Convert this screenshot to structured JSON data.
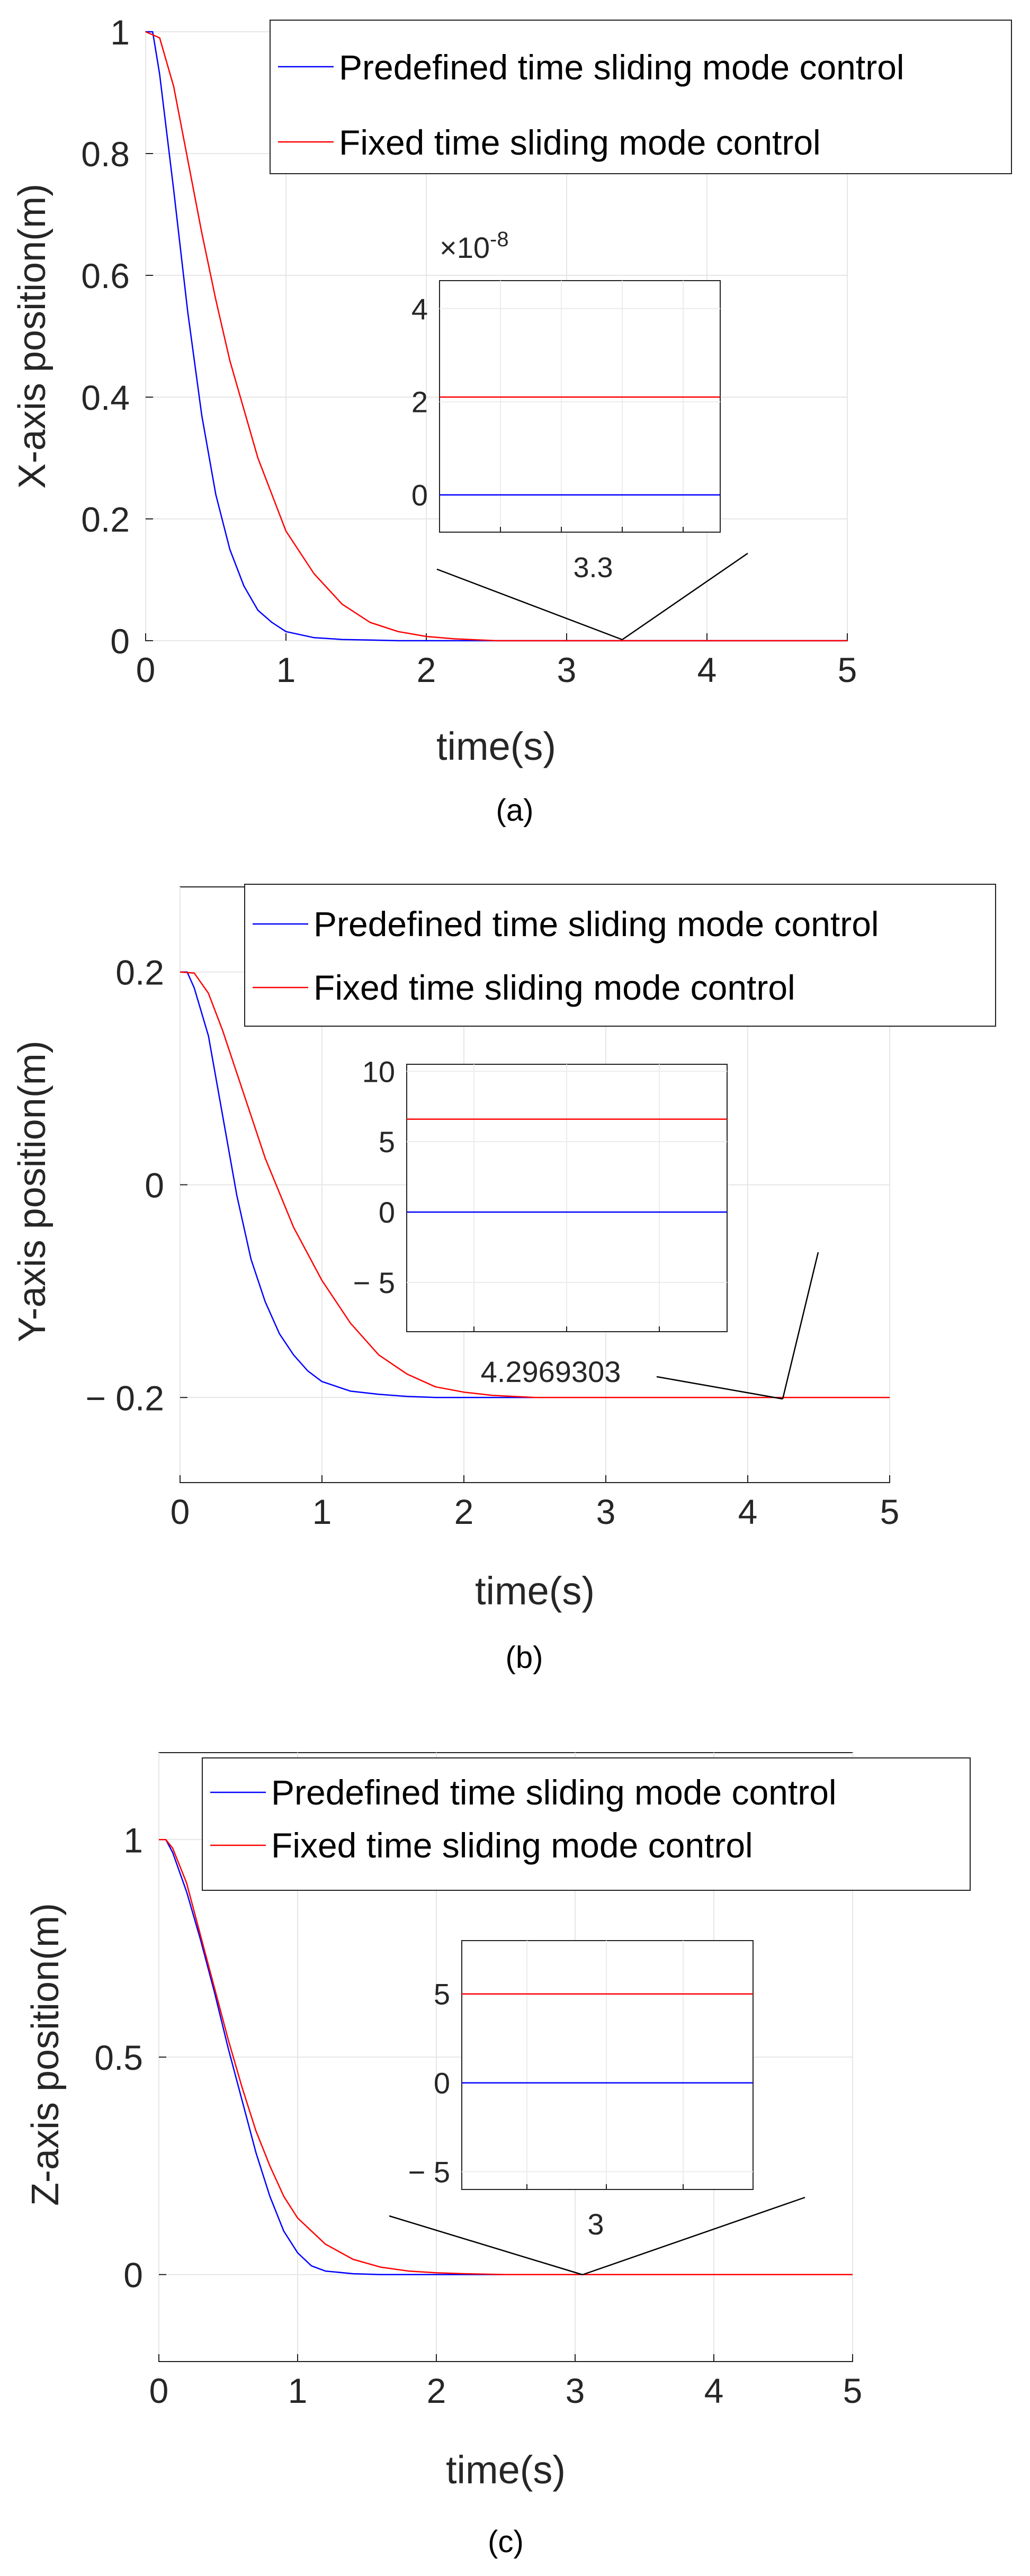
{
  "chart_data": [
    {
      "panel": "a",
      "type": "line",
      "caption": "(a)",
      "xlabel": "time(s)",
      "ylabel": "X-axis position(m)",
      "xlim": [
        0,
        5
      ],
      "ylim": [
        0,
        1
      ],
      "xticks": [
        0,
        1,
        2,
        3,
        4,
        5
      ],
      "yticks": [
        0,
        0.2,
        0.4,
        0.6,
        0.8,
        1
      ],
      "ytick_labels": [
        "0",
        "0.2",
        "0.4",
        "0.6",
        "0.8",
        "1"
      ],
      "grid": true,
      "legend": "top-right",
      "series": [
        {
          "name": "Predefined time sliding mode control",
          "color": "#0000ff",
          "x": [
            0,
            0.05,
            0.1,
            0.2,
            0.3,
            0.4,
            0.5,
            0.6,
            0.7,
            0.8,
            0.9,
            1.0,
            1.2,
            1.4,
            1.6,
            1.8,
            2.0,
            5.0
          ],
          "y": [
            1.0,
            1.0,
            0.93,
            0.74,
            0.54,
            0.37,
            0.24,
            0.15,
            0.09,
            0.05,
            0.03,
            0.015,
            0.005,
            0.002,
            0.001,
            0.0,
            0.0,
            0.0
          ]
        },
        {
          "name": "Fixed time sliding mode control",
          "color": "#ff0000",
          "x": [
            0,
            0.1,
            0.2,
            0.3,
            0.4,
            0.5,
            0.6,
            0.8,
            1.0,
            1.2,
            1.4,
            1.6,
            1.8,
            2.0,
            2.2,
            2.5,
            5.0
          ],
          "y": [
            1.0,
            0.99,
            0.91,
            0.79,
            0.67,
            0.56,
            0.46,
            0.3,
            0.18,
            0.11,
            0.06,
            0.03,
            0.015,
            0.007,
            0.003,
            0.0,
            0.0
          ]
        }
      ],
      "inset": {
        "exponent_label": "×10",
        "exponent_power": "-8",
        "yticks": [
          0,
          2,
          4
        ],
        "ytick_labels": [
          "0",
          "2",
          "4"
        ],
        "ylim": [
          -0.8,
          4.6
        ],
        "x_label": "3.3",
        "focus": [
          3.38,
          0
        ],
        "series_values": [
          0,
          2.1
        ]
      }
    },
    {
      "panel": "b",
      "type": "line",
      "caption": "(b)",
      "xlabel": "time(s)",
      "ylabel": "Y-axis position(m)",
      "xlim": [
        0,
        5
      ],
      "ylim": [
        -0.28,
        0.28
      ],
      "xticks": [
        0,
        1,
        2,
        3,
        4,
        5
      ],
      "yticks": [
        -0.2,
        0,
        0.2
      ],
      "ytick_labels": [
        "− 0.2",
        "0",
        "0.2"
      ],
      "grid": true,
      "legend": "top-right",
      "series": [
        {
          "name": "Predefined time sliding mode control",
          "color": "#0000ff",
          "x": [
            0,
            0.05,
            0.1,
            0.2,
            0.3,
            0.4,
            0.5,
            0.6,
            0.7,
            0.8,
            0.9,
            1.0,
            1.2,
            1.4,
            1.6,
            1.8,
            2.0,
            5.0
          ],
          "y": [
            0.2,
            0.2,
            0.185,
            0.14,
            0.065,
            -0.01,
            -0.07,
            -0.11,
            -0.14,
            -0.16,
            -0.175,
            -0.185,
            -0.194,
            -0.197,
            -0.199,
            -0.2,
            -0.2,
            -0.2
          ]
        },
        {
          "name": "Fixed time sliding mode control",
          "color": "#ff0000",
          "x": [
            0,
            0.1,
            0.2,
            0.3,
            0.4,
            0.5,
            0.6,
            0.8,
            1.0,
            1.2,
            1.4,
            1.6,
            1.8,
            2.0,
            2.2,
            2.5,
            5.0
          ],
          "y": [
            0.2,
            0.199,
            0.18,
            0.145,
            0.105,
            0.065,
            0.025,
            -0.04,
            -0.09,
            -0.13,
            -0.16,
            -0.178,
            -0.19,
            -0.195,
            -0.198,
            -0.2,
            -0.2
          ]
        }
      ],
      "inset": {
        "exponent_label": "",
        "exponent_power": "",
        "yticks": [
          -5,
          0,
          5,
          10
        ],
        "ytick_labels": [
          "− 5",
          "0",
          "5",
          "10"
        ],
        "ylim": [
          -8.5,
          10.5
        ],
        "x_label": "4.2969303",
        "focus": [
          4.25,
          -0.2
        ],
        "series_values": [
          0,
          6.6
        ]
      }
    },
    {
      "panel": "c",
      "type": "line",
      "caption": "(c)",
      "xlabel": "time(s)",
      "ylabel": "Z-axis position(m)",
      "xlim": [
        0,
        5
      ],
      "ylim": [
        -0.2,
        1.2
      ],
      "xticks": [
        0,
        1,
        2,
        3,
        4,
        5
      ],
      "yticks": [
        0,
        0.5,
        1
      ],
      "ytick_labels": [
        "0",
        "0.5",
        "1"
      ],
      "grid": true,
      "legend": "top-right",
      "series": [
        {
          "name": "Predefined time sliding mode control",
          "color": "#0000ff",
          "x": [
            0,
            0.05,
            0.1,
            0.2,
            0.3,
            0.4,
            0.5,
            0.6,
            0.7,
            0.8,
            0.9,
            1.0,
            1.1,
            1.2,
            1.4,
            1.6,
            2.0,
            5.0
          ],
          "y": [
            1.0,
            1.0,
            0.97,
            0.88,
            0.77,
            0.65,
            0.52,
            0.4,
            0.28,
            0.18,
            0.1,
            0.05,
            0.02,
            0.008,
            0.002,
            0.0,
            0.0,
            0.0
          ]
        },
        {
          "name": "Fixed time sliding mode control",
          "color": "#ff0000",
          "x": [
            0,
            0.05,
            0.1,
            0.2,
            0.3,
            0.4,
            0.5,
            0.6,
            0.7,
            0.8,
            0.9,
            1.0,
            1.2,
            1.4,
            1.6,
            1.8,
            2.0,
            2.2,
            2.5,
            5.0
          ],
          "y": [
            1.0,
            1.0,
            0.98,
            0.9,
            0.78,
            0.66,
            0.54,
            0.43,
            0.33,
            0.25,
            0.18,
            0.13,
            0.07,
            0.035,
            0.017,
            0.008,
            0.004,
            0.002,
            0.0,
            0.0
          ]
        }
      ],
      "inset": {
        "exponent_label": "",
        "exponent_power": "",
        "yticks": [
          -5,
          0,
          5
        ],
        "ytick_labels": [
          "− 5",
          "0",
          "5"
        ],
        "ylim": [
          -6,
          8
        ],
        "x_label": "3",
        "focus": [
          3.05,
          0
        ],
        "series_values": [
          0,
          5
        ]
      }
    }
  ]
}
